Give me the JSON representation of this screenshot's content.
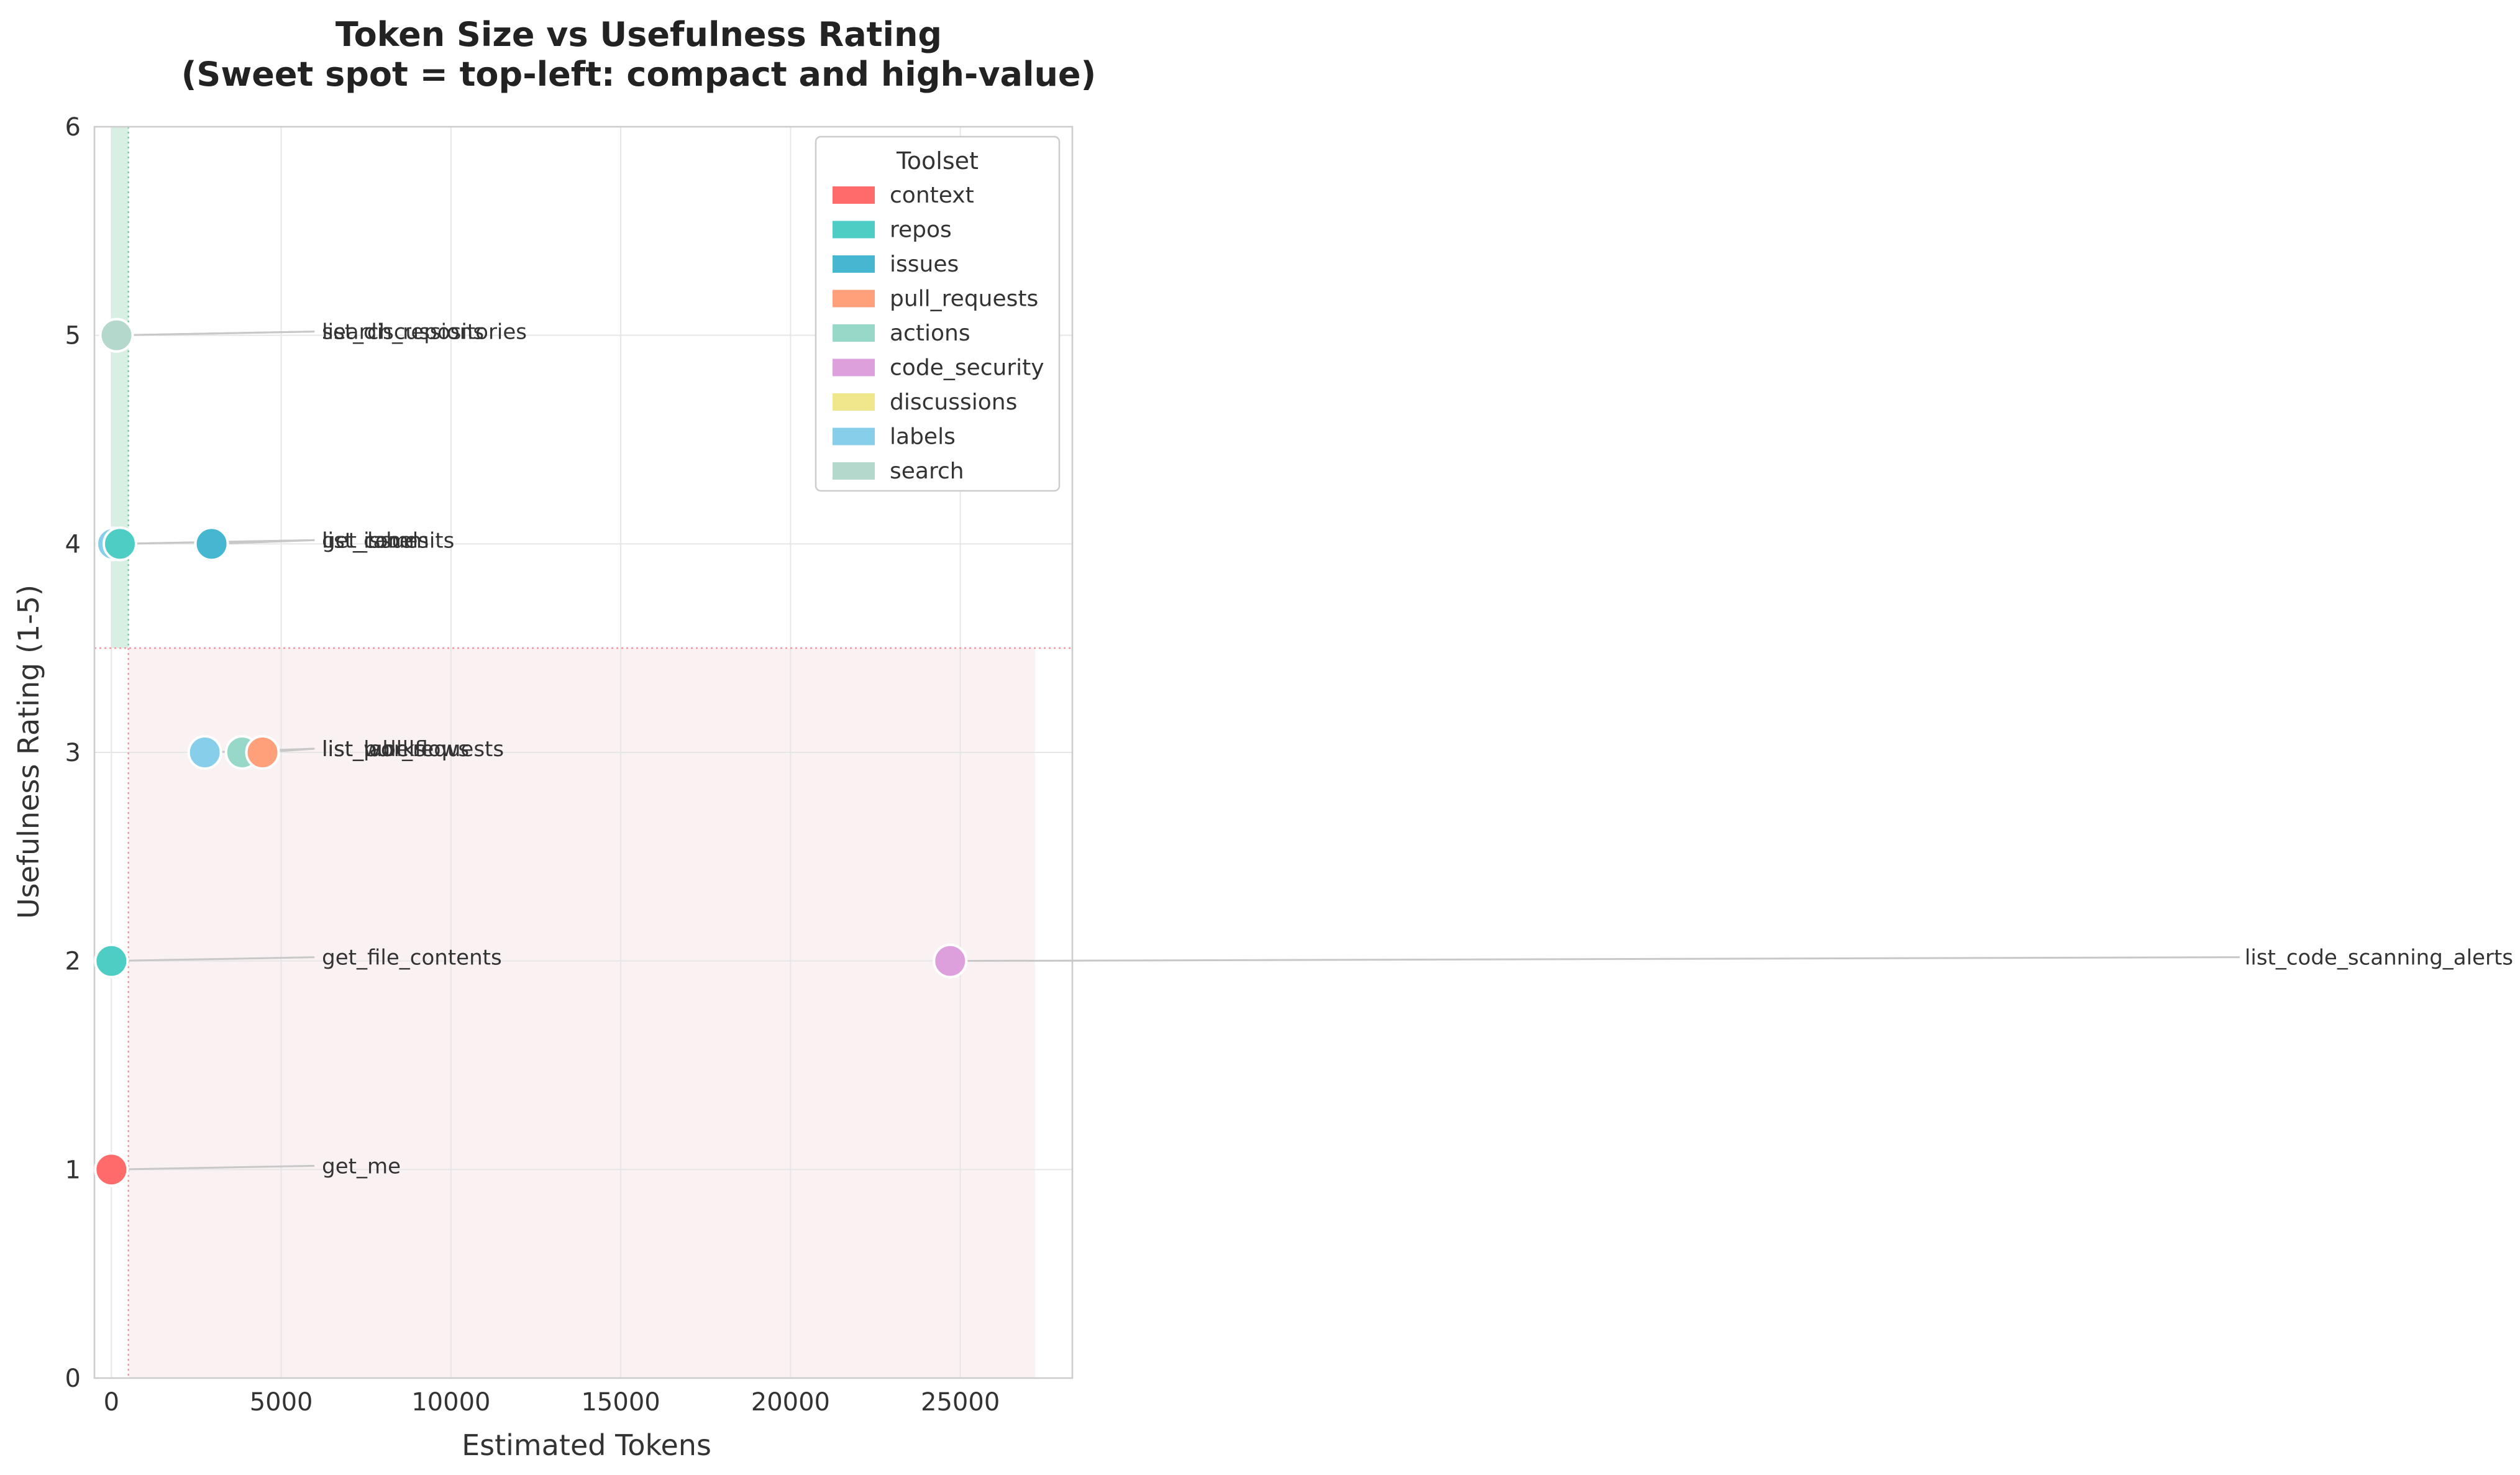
{
  "chart_data": {
    "type": "scatter",
    "title_line1": "Token Size vs Usefulness Rating",
    "title_line2": "(Sweet spot = top-left: compact and high-value)",
    "xlabel": "Estimated Tokens",
    "ylabel": "Usefulness Rating (1-5)",
    "xlim": [
      -500,
      28300
    ],
    "ylim": [
      0,
      6
    ],
    "x_ticks": [
      0,
      5000,
      10000,
      15000,
      20000,
      25000
    ],
    "y_ticks": [
      0,
      1,
      2,
      3,
      4,
      5,
      6
    ],
    "grid": true,
    "reference_lines": {
      "x_threshold": 500,
      "y_threshold": 3.5
    },
    "shaded_regions": [
      {
        "name": "compact",
        "x": [
          0,
          500
        ],
        "y": [
          3.5,
          6
        ],
        "color": "#a8dbc2"
      },
      {
        "name": "large-low-value",
        "x": [
          500,
          27200
        ],
        "y": [
          0,
          3.5
        ],
        "color": "#f2d6dc"
      }
    ],
    "legend": {
      "title": "Toolset",
      "position": "top-right",
      "entries": [
        {
          "label": "context",
          "color": "#ff6b6b"
        },
        {
          "label": "repos",
          "color": "#4ecdc4"
        },
        {
          "label": "issues",
          "color": "#45b7d1"
        },
        {
          "label": "pull_requests",
          "color": "#ffa07a"
        },
        {
          "label": "actions",
          "color": "#98d8c8"
        },
        {
          "label": "code_security",
          "color": "#dda0dd"
        },
        {
          "label": "discussions",
          "color": "#f0e68c"
        },
        {
          "label": "labels",
          "color": "#87ceeb"
        },
        {
          "label": "search",
          "color": "#b5d8cc"
        }
      ]
    },
    "points": [
      {
        "tool": "get_me",
        "toolset": "context",
        "tokens": 0,
        "rating": 1,
        "color": "#ff6b6b"
      },
      {
        "tool": "get_file_contents",
        "toolset": "repos",
        "tokens": 0,
        "rating": 2,
        "color": "#4ecdc4"
      },
      {
        "tool": "list_code_scanning_alerts",
        "toolset": "code_security",
        "tokens": 24700,
        "rating": 2,
        "color": "#dda0dd"
      },
      {
        "tool": "list_labels",
        "toolset": "labels",
        "tokens": 2750,
        "rating": 3,
        "color": "#87ceeb"
      },
      {
        "tool": "list_workflows",
        "toolset": "actions",
        "tokens": 3850,
        "rating": 3,
        "color": "#98d8c8"
      },
      {
        "tool": "list_pull_requests",
        "toolset": "pull_requests",
        "tokens": 4450,
        "rating": 3,
        "color": "#ffa07a"
      },
      {
        "tool": "get_label",
        "toolset": "labels",
        "tokens": 50,
        "rating": 4,
        "color": "#87ceeb"
      },
      {
        "tool": "list_commits",
        "toolset": "repos",
        "tokens": 250,
        "rating": 4,
        "color": "#4ecdc4"
      },
      {
        "tool": "list_issues",
        "toolset": "issues",
        "tokens": 2950,
        "rating": 4,
        "color": "#45b7d1"
      },
      {
        "tool": "list_discussions",
        "toolset": "discussions",
        "tokens": 150,
        "rating": 5,
        "color": "#f0e68c"
      },
      {
        "tool": "search_repositories",
        "toolset": "search",
        "tokens": 150,
        "rating": 5,
        "color": "#b5d8cc"
      }
    ],
    "annotation_label_x": 6200
  }
}
